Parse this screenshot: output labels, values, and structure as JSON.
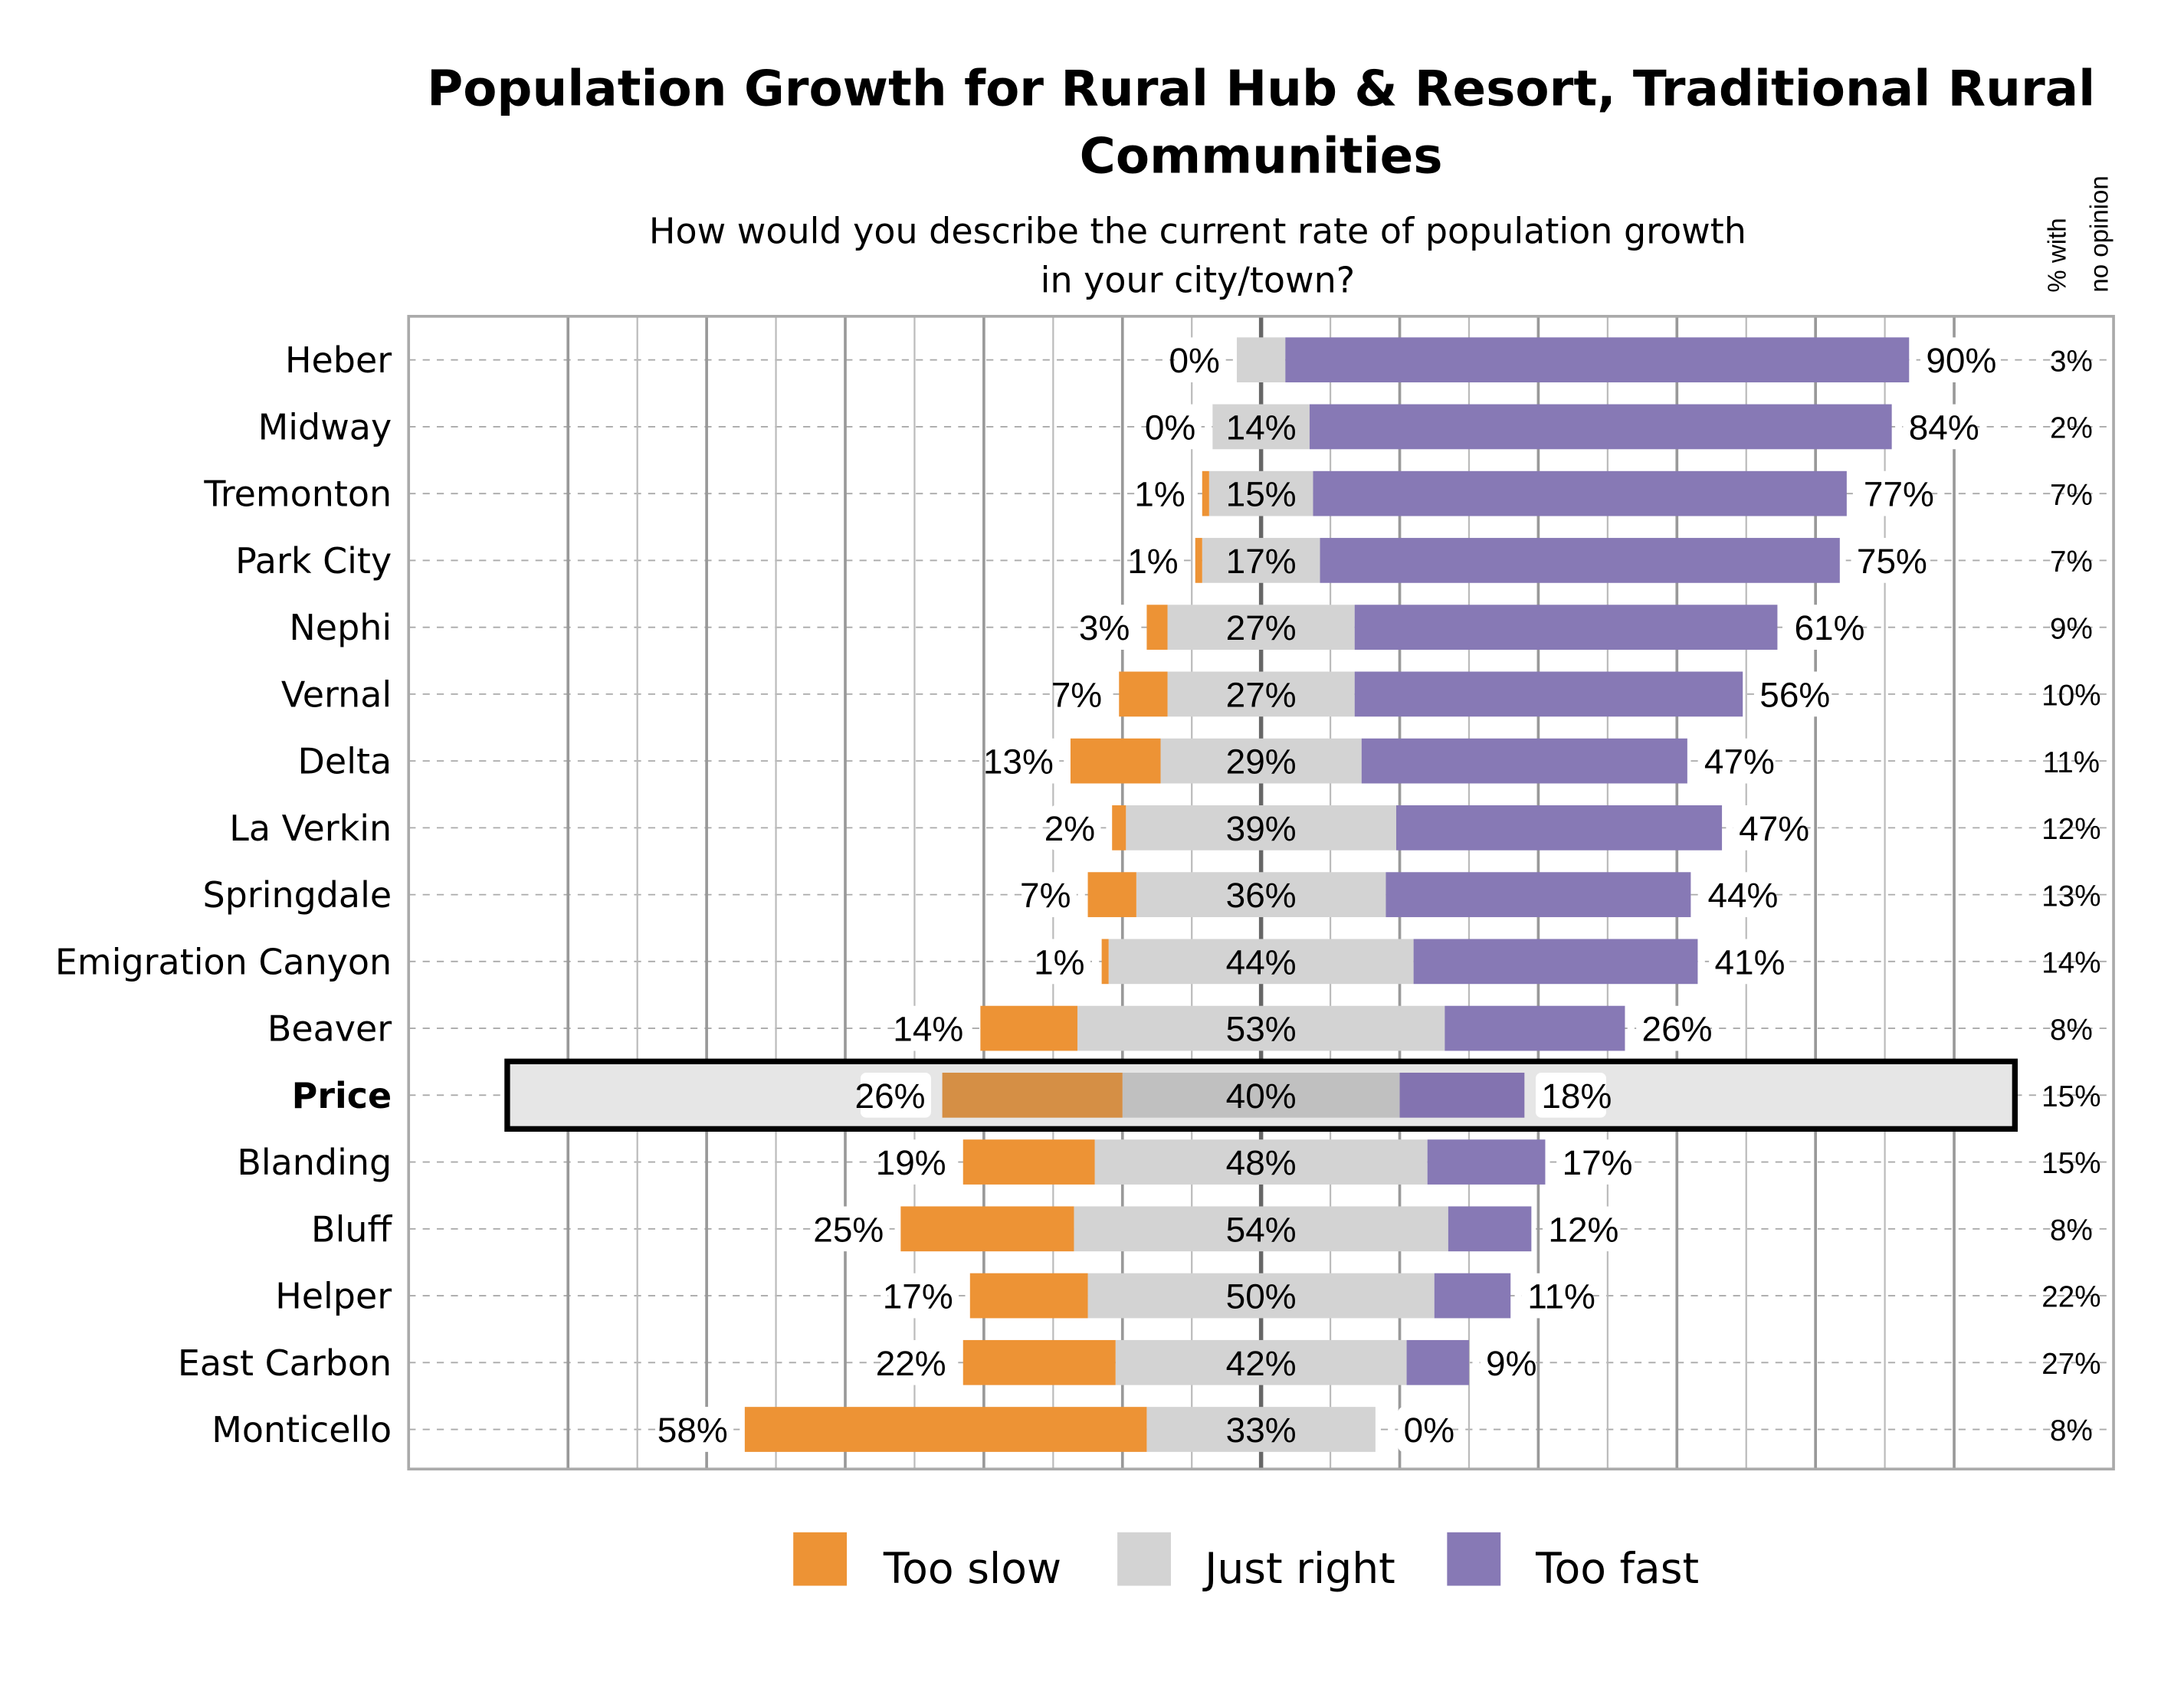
{
  "chart_data": {
    "type": "bar",
    "orientation": "horizontal-diverging-stacked",
    "title": "Population Growth for Rural Hub & Resort, Traditional Rural Communities",
    "subtitle": "How would you describe the current rate of population growth in your city/town?",
    "side_column_header": "% with no opinion",
    "categories": [
      "Heber",
      "Midway",
      "Tremonton",
      "Park City",
      "Nephi",
      "Vernal",
      "Delta",
      "La Verkin",
      "Springdale",
      "Emigration Canyon",
      "Beaver",
      "Price",
      "Blanding",
      "Bluff",
      "Helper",
      "East Carbon",
      "Monticello"
    ],
    "highlighted_category": "Price",
    "series": [
      {
        "name": "Too slow",
        "color": "#ed9335",
        "values": [
          0,
          0,
          1,
          1,
          3,
          7,
          13,
          2,
          7,
          1,
          14,
          26,
          19,
          25,
          17,
          22,
          58
        ]
      },
      {
        "name": "Just right",
        "color": "#d3d3d3",
        "values": [
          7,
          14,
          15,
          17,
          27,
          27,
          29,
          39,
          36,
          44,
          53,
          40,
          48,
          54,
          50,
          42,
          33
        ],
        "labeled": [
          false,
          true,
          true,
          true,
          true,
          true,
          true,
          true,
          true,
          true,
          true,
          true,
          true,
          true,
          true,
          true,
          true
        ]
      },
      {
        "name": "Too fast",
        "color": "#8779b5",
        "values": [
          90,
          84,
          77,
          75,
          61,
          56,
          47,
          47,
          44,
          41,
          26,
          18,
          17,
          12,
          11,
          9,
          0
        ]
      }
    ],
    "no_opinion": [
      3,
      2,
      7,
      7,
      9,
      10,
      11,
      12,
      13,
      14,
      8,
      15,
      15,
      8,
      22,
      27,
      8
    ],
    "highlight_colors": {
      "Too slow": "#d58f45",
      "Just right": "#c0c0c0",
      "Too fast": "#8373b0"
    },
    "xlim": [
      -123,
      123
    ],
    "grid": true,
    "legend_position": "bottom"
  }
}
